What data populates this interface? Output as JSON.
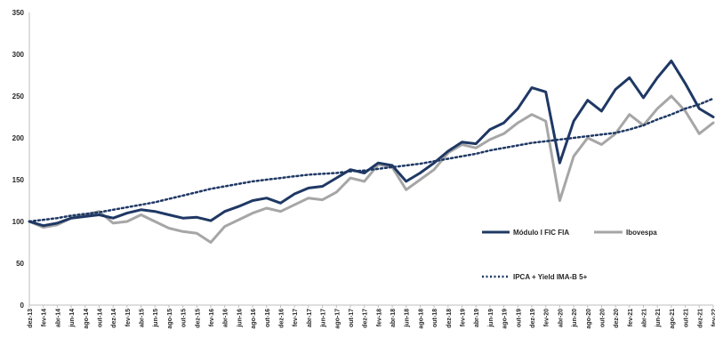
{
  "chart_data": {
    "type": "line",
    "title": "",
    "xlabel": "",
    "ylabel": "",
    "ylim": [
      0,
      350
    ],
    "yticks": [
      0,
      50,
      100,
      150,
      200,
      250,
      300,
      350
    ],
    "grid": false,
    "legend": {
      "placement": "center-right"
    },
    "x_tick_labels": [
      "dez-13",
      "fev-14",
      "abr-14",
      "jun-14",
      "ago-14",
      "out-14",
      "dez-14",
      "fev-15",
      "abr-15",
      "jun-15",
      "ago-15",
      "out-15",
      "dez-15",
      "fev-16",
      "abr-16",
      "jun-16",
      "ago-16",
      "out-16",
      "dez-16",
      "fev-17",
      "abr-17",
      "jun-17",
      "ago-17",
      "out-17",
      "dez-17",
      "fev-18",
      "abr-18",
      "jun-18",
      "ago-18",
      "out-18",
      "dez-18",
      "fev-19",
      "abr-19",
      "jun-19",
      "ago-19",
      "out-19",
      "dez-19",
      "fev-20",
      "abr-20",
      "jun-20",
      "ago-20",
      "out-20",
      "dez-20",
      "fev-21",
      "abr-21",
      "jun-21",
      "ago-21",
      "out-21",
      "dez-21",
      "fev-22"
    ],
    "series": [
      {
        "name": "Módulo I FIC FIA",
        "color": "#1f3864",
        "style": "solid",
        "values": [
          100,
          95,
          98,
          104,
          106,
          108,
          104,
          110,
          114,
          112,
          108,
          104,
          105,
          101,
          112,
          118,
          125,
          128,
          122,
          133,
          140,
          142,
          152,
          162,
          158,
          170,
          167,
          148,
          158,
          170,
          184,
          195,
          193,
          210,
          218,
          235,
          260,
          255,
          170,
          220,
          245,
          232,
          258,
          272,
          248,
          272,
          292,
          265,
          235,
          225
        ]
      },
      {
        "name": "Ibovespa",
        "color": "#a6a6a6",
        "style": "solid",
        "values": [
          100,
          93,
          96,
          104,
          108,
          112,
          98,
          100,
          108,
          100,
          92,
          88,
          86,
          75,
          94,
          102,
          110,
          116,
          112,
          120,
          128,
          126,
          135,
          152,
          148,
          168,
          165,
          138,
          150,
          162,
          182,
          192,
          188,
          198,
          205,
          218,
          228,
          220,
          125,
          178,
          200,
          192,
          205,
          228,
          215,
          235,
          250,
          232,
          205,
          218
        ]
      },
      {
        "name": "IPCA + Yield IMA-B 5+",
        "color": "#1f3864",
        "style": "dotted",
        "values": [
          100,
          102,
          104,
          107,
          109,
          111,
          114,
          117,
          120,
          123,
          127,
          131,
          135,
          139,
          142,
          145,
          148,
          150,
          152,
          154,
          156,
          157,
          158,
          160,
          161,
          163,
          165,
          167,
          169,
          172,
          175,
          178,
          181,
          185,
          188,
          191,
          194,
          196,
          198,
          200,
          202,
          204,
          206,
          210,
          215,
          222,
          228,
          235,
          240,
          247
        ]
      }
    ]
  }
}
